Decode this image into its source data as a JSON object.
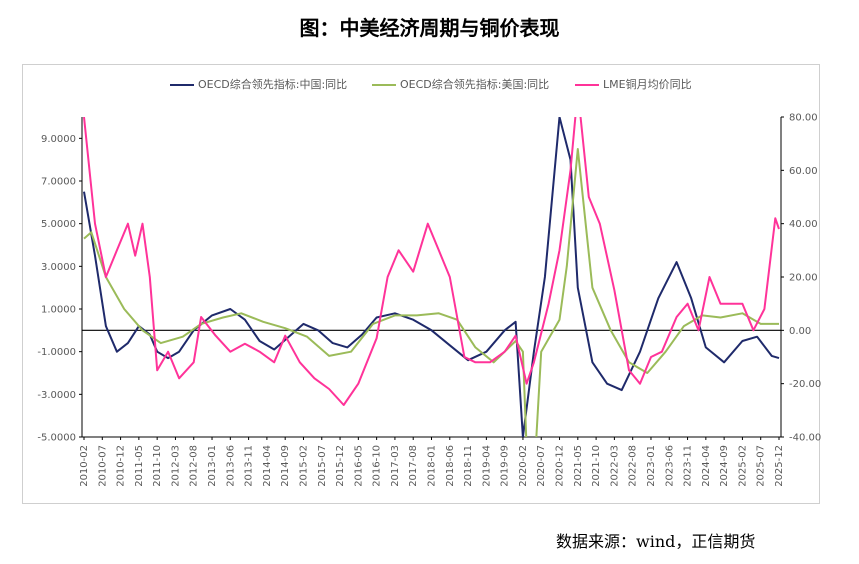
{
  "title": "图：中美经济周期与铜价表现",
  "source": "数据来源：wind，正信期货",
  "colors": {
    "china": "#1f2a6b",
    "us": "#9bbb59",
    "copper": "#ff3399",
    "axis": "#000000",
    "text": "#595959"
  },
  "chart_data": {
    "type": "line",
    "title": "图：中美经济周期与铜价表现",
    "legend_position": "top",
    "grid": false,
    "y_left": {
      "ylim": [
        -5,
        10
      ],
      "ticks": [
        "9.0000",
        "7.0000",
        "5.0000",
        "3.0000",
        "1.0000",
        "-1.0000",
        "-3.0000",
        "-5.0000"
      ]
    },
    "y_right": {
      "ylim": [
        -40,
        80
      ],
      "ticks": [
        "80.00",
        "60.00",
        "40.00",
        "20.00",
        "0.00",
        "-20.00",
        "-40.00"
      ]
    },
    "x_ticks": [
      "2010-02",
      "2010-07",
      "2010-12",
      "2011-05",
      "2011-10",
      "2012-03",
      "2012-08",
      "2013-01",
      "2013-06",
      "2013-11",
      "2014-04",
      "2014-09",
      "2015-02",
      "2015-07",
      "2015-12",
      "2016-05",
      "2016-10",
      "2017-03",
      "2017-08",
      "2018-01",
      "2018-06",
      "2018-11",
      "2019-04",
      "2019-09",
      "2020-02",
      "2020-07",
      "2020-12",
      "2021-05",
      "2021-10",
      "2022-03",
      "2022-08",
      "2023-01",
      "2023-06",
      "2023-11",
      "2024-04",
      "2024-09",
      "2025-02",
      "2025-07",
      "2025-12"
    ],
    "series": [
      {
        "name": "OECD综合领先指标:中国:同比",
        "axis": "left",
        "color": "#1f2a6b",
        "points": [
          [
            "2010-02",
            6.5
          ],
          [
            "2010-05",
            3.5
          ],
          [
            "2010-08",
            0.2
          ],
          [
            "2010-11",
            -1.0
          ],
          [
            "2011-02",
            -0.6
          ],
          [
            "2011-05",
            0.2
          ],
          [
            "2011-08",
            -0.2
          ],
          [
            "2011-10",
            -1.0
          ],
          [
            "2012-01",
            -1.3
          ],
          [
            "2012-04",
            -1.0
          ],
          [
            "2012-08",
            0.0
          ],
          [
            "2013-01",
            0.7
          ],
          [
            "2013-06",
            1.0
          ],
          [
            "2013-10",
            0.5
          ],
          [
            "2014-02",
            -0.5
          ],
          [
            "2014-06",
            -0.9
          ],
          [
            "2014-10",
            -0.3
          ],
          [
            "2015-02",
            0.3
          ],
          [
            "2015-06",
            0.0
          ],
          [
            "2015-10",
            -0.6
          ],
          [
            "2016-02",
            -0.8
          ],
          [
            "2016-06",
            -0.2
          ],
          [
            "2016-10",
            0.6
          ],
          [
            "2017-03",
            0.8
          ],
          [
            "2017-08",
            0.5
          ],
          [
            "2018-01",
            0.0
          ],
          [
            "2018-06",
            -0.7
          ],
          [
            "2018-11",
            -1.4
          ],
          [
            "2019-04",
            -1.0
          ],
          [
            "2019-09",
            0.0
          ],
          [
            "2019-12",
            0.4
          ],
          [
            "2020-02",
            -5.0
          ],
          [
            "2020-05",
            -1.0
          ],
          [
            "2020-08",
            2.5
          ],
          [
            "2020-12",
            10.0
          ],
          [
            "2021-03",
            8.0
          ],
          [
            "2021-05",
            2.0
          ],
          [
            "2021-09",
            -1.5
          ],
          [
            "2022-01",
            -2.5
          ],
          [
            "2022-05",
            -2.8
          ],
          [
            "2022-10",
            -1.0
          ],
          [
            "2023-03",
            1.5
          ],
          [
            "2023-08",
            3.2
          ],
          [
            "2023-12",
            1.5
          ],
          [
            "2024-04",
            -0.8
          ],
          [
            "2024-09",
            -1.5
          ],
          [
            "2025-02",
            -0.5
          ],
          [
            "2025-06",
            -0.3
          ],
          [
            "2025-10",
            -1.2
          ],
          [
            "2025-12",
            -1.3
          ]
        ]
      },
      {
        "name": "OECD综合领先指标:美国:同比",
        "axis": "left",
        "color": "#9bbb59",
        "points": [
          [
            "2010-02",
            4.3
          ],
          [
            "2010-04",
            4.6
          ],
          [
            "2010-08",
            2.5
          ],
          [
            "2011-01",
            1.0
          ],
          [
            "2011-06",
            0.0
          ],
          [
            "2011-11",
            -0.6
          ],
          [
            "2012-05",
            -0.3
          ],
          [
            "2012-10",
            0.3
          ],
          [
            "2013-04",
            0.6
          ],
          [
            "2013-09",
            0.8
          ],
          [
            "2014-03",
            0.4
          ],
          [
            "2014-09",
            0.1
          ],
          [
            "2015-03",
            -0.3
          ],
          [
            "2015-09",
            -1.2
          ],
          [
            "2016-03",
            -1.0
          ],
          [
            "2016-09",
            0.3
          ],
          [
            "2017-03",
            0.7
          ],
          [
            "2017-09",
            0.7
          ],
          [
            "2018-03",
            0.8
          ],
          [
            "2018-08",
            0.5
          ],
          [
            "2019-01",
            -0.8
          ],
          [
            "2019-06",
            -1.5
          ],
          [
            "2019-12",
            -0.5
          ],
          [
            "2020-02",
            -1.0
          ],
          [
            "2020-04",
            -10.0
          ],
          [
            "2020-07",
            -1.0
          ],
          [
            "2020-12",
            0.5
          ],
          [
            "2021-02",
            3.0
          ],
          [
            "2021-05",
            8.5
          ],
          [
            "2021-09",
            2.0
          ],
          [
            "2022-02",
            0.0
          ],
          [
            "2022-07",
            -1.5
          ],
          [
            "2022-12",
            -2.0
          ],
          [
            "2023-05",
            -1.0
          ],
          [
            "2023-10",
            0.2
          ],
          [
            "2024-03",
            0.7
          ],
          [
            "2024-08",
            0.6
          ],
          [
            "2025-02",
            0.8
          ],
          [
            "2025-07",
            0.3
          ],
          [
            "2025-12",
            0.3
          ]
        ]
      },
      {
        "name": "LME铜月均价同比",
        "axis": "right",
        "color": "#ff3399",
        "points": [
          [
            "2010-02",
            80
          ],
          [
            "2010-05",
            40
          ],
          [
            "2010-08",
            20
          ],
          [
            "2010-11",
            30
          ],
          [
            "2011-02",
            40
          ],
          [
            "2011-04",
            28
          ],
          [
            "2011-06",
            40
          ],
          [
            "2011-08",
            20
          ],
          [
            "2011-10",
            -15
          ],
          [
            "2012-01",
            -8
          ],
          [
            "2012-04",
            -18
          ],
          [
            "2012-08",
            -12
          ],
          [
            "2012-10",
            5
          ],
          [
            "2013-02",
            -2
          ],
          [
            "2013-06",
            -8
          ],
          [
            "2013-10",
            -5
          ],
          [
            "2014-02",
            -8
          ],
          [
            "2014-06",
            -12
          ],
          [
            "2014-09",
            -2
          ],
          [
            "2015-01",
            -12
          ],
          [
            "2015-05",
            -18
          ],
          [
            "2015-09",
            -22
          ],
          [
            "2016-01",
            -28
          ],
          [
            "2016-05",
            -20
          ],
          [
            "2016-10",
            -3
          ],
          [
            "2017-01",
            20
          ],
          [
            "2017-04",
            30
          ],
          [
            "2017-08",
            22
          ],
          [
            "2017-12",
            40
          ],
          [
            "2018-03",
            30
          ],
          [
            "2018-06",
            20
          ],
          [
            "2018-10",
            -10
          ],
          [
            "2019-01",
            -12
          ],
          [
            "2019-05",
            -12
          ],
          [
            "2019-09",
            -8
          ],
          [
            "2019-12",
            -2
          ],
          [
            "2020-03",
            -20
          ],
          [
            "2020-05",
            -12
          ],
          [
            "2020-09",
            10
          ],
          [
            "2020-12",
            30
          ],
          [
            "2021-03",
            60
          ],
          [
            "2021-05",
            90
          ],
          [
            "2021-08",
            50
          ],
          [
            "2021-11",
            40
          ],
          [
            "2022-03",
            15
          ],
          [
            "2022-07",
            -15
          ],
          [
            "2022-10",
            -20
          ],
          [
            "2023-01",
            -10
          ],
          [
            "2023-04",
            -8
          ],
          [
            "2023-08",
            5
          ],
          [
            "2023-11",
            10
          ],
          [
            "2024-02",
            0
          ],
          [
            "2024-05",
            20
          ],
          [
            "2024-08",
            10
          ],
          [
            "2024-11",
            10
          ],
          [
            "2025-02",
            10
          ],
          [
            "2025-05",
            0
          ],
          [
            "2025-08",
            8
          ],
          [
            "2025-11",
            42
          ],
          [
            "2025-12",
            38
          ]
        ]
      }
    ]
  }
}
